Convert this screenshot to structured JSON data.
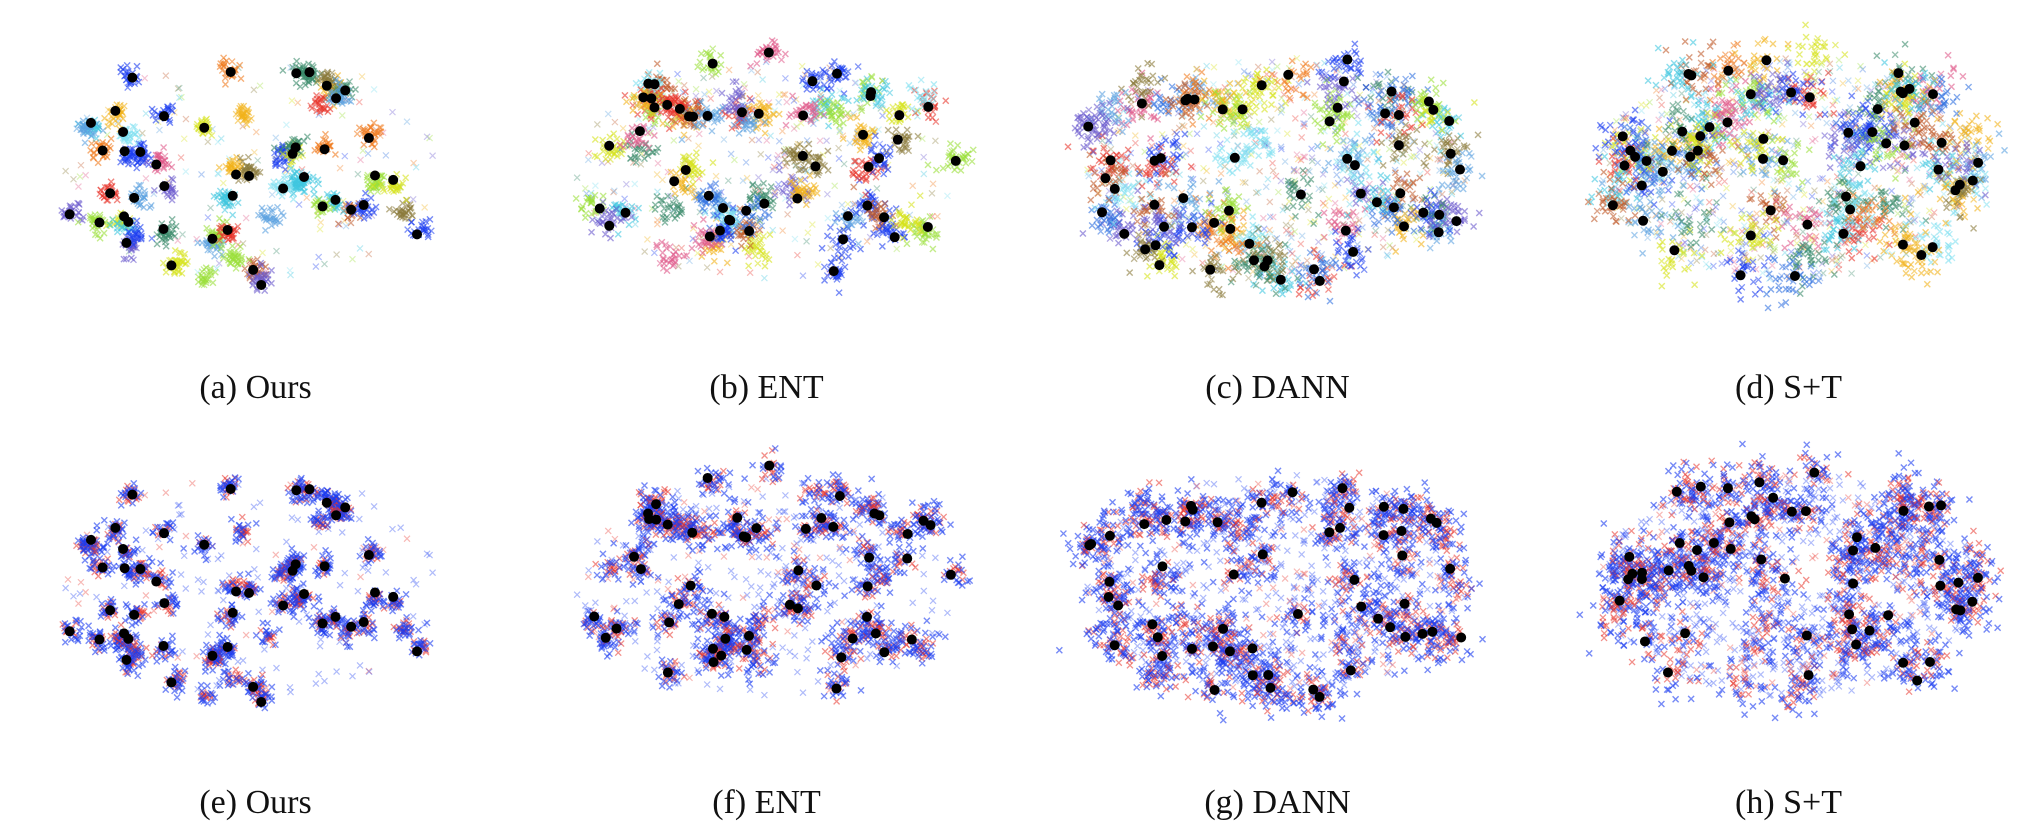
{
  "figure": {
    "panels": [
      {
        "caption": "(a) Ours",
        "style": "class",
        "spread": 0.18,
        "clusters": 58,
        "layout": "sparse",
        "seed": 11
      },
      {
        "caption": "(b) ENT",
        "style": "class",
        "spread": 0.42,
        "clusters": 64,
        "layout": "medium",
        "seed": 23
      },
      {
        "caption": "(c) DANN",
        "style": "class",
        "spread": 0.75,
        "clusters": 70,
        "layout": "dense",
        "seed": 37
      },
      {
        "caption": "(d) S+T",
        "style": "class",
        "spread": 0.95,
        "clusters": 72,
        "layout": "dense",
        "seed": 41
      },
      {
        "caption": "(e) Ours",
        "style": "domain",
        "spread": 0.2,
        "clusters": 58,
        "layout": "sparse",
        "seed": 11
      },
      {
        "caption": "(f) ENT",
        "style": "domain",
        "spread": 0.45,
        "clusters": 64,
        "layout": "medium",
        "seed": 23
      },
      {
        "caption": "(g) DANN",
        "style": "domain",
        "spread": 0.8,
        "clusters": 70,
        "layout": "dense",
        "seed": 37
      },
      {
        "caption": "(h) S+T",
        "style": "domain",
        "spread": 1.0,
        "clusters": 72,
        "layout": "dense",
        "seed": 41
      }
    ]
  },
  "chart_data": [
    {
      "type": "scatter",
      "title": "(a) Ours",
      "markers": [
        "source ×",
        "target ×",
        "prototype ●"
      ],
      "coloring": "per-class",
      "grid": false
    },
    {
      "type": "scatter",
      "title": "(b) ENT",
      "markers": [
        "source ×",
        "target ×",
        "prototype ●"
      ],
      "coloring": "per-class",
      "grid": false
    },
    {
      "type": "scatter",
      "title": "(c) DANN",
      "markers": [
        "source ×",
        "target ×",
        "prototype ●"
      ],
      "coloring": "per-class",
      "grid": false
    },
    {
      "type": "scatter",
      "title": "(d) S+T",
      "markers": [
        "source ×",
        "target ×",
        "prototype ●"
      ],
      "coloring": "per-class",
      "grid": false
    },
    {
      "type": "scatter",
      "title": "(e) Ours",
      "markers": [
        "source ×",
        "target ×",
        "prototype ●"
      ],
      "coloring": "per-domain",
      "domain_colors": {
        "source": "#e8332a",
        "target": "#1a3cf0",
        "prototype": "#000000"
      },
      "grid": false
    },
    {
      "type": "scatter",
      "title": "(f) ENT",
      "markers": [
        "source ×",
        "target ×",
        "prototype ●"
      ],
      "coloring": "per-domain",
      "domain_colors": {
        "source": "#e8332a",
        "target": "#1a3cf0",
        "prototype": "#000000"
      },
      "grid": false
    },
    {
      "type": "scatter",
      "title": "(g) DANN",
      "markers": [
        "source ×",
        "target ×",
        "prototype ●"
      ],
      "coloring": "per-domain",
      "domain_colors": {
        "source": "#e8332a",
        "target": "#1a3cf0",
        "prototype": "#000000"
      },
      "grid": false
    },
    {
      "type": "scatter",
      "title": "(h) S+T",
      "markers": [
        "source ×",
        "target ×",
        "prototype ●"
      ],
      "coloring": "per-domain",
      "domain_colors": {
        "source": "#e8332a",
        "target": "#1a3cf0",
        "prototype": "#000000"
      },
      "grid": false
    }
  ],
  "palette": [
    "#e8332a",
    "#f07a1c",
    "#f2b21a",
    "#d6e21a",
    "#9be03a",
    "#3fc7e0",
    "#7fe0f0",
    "#2f6fe0",
    "#1a3cf0",
    "#6a5acd",
    "#8a7a3a",
    "#3a8a6a",
    "#c05a2a",
    "#e05a8a",
    "#5aa0e0"
  ]
}
